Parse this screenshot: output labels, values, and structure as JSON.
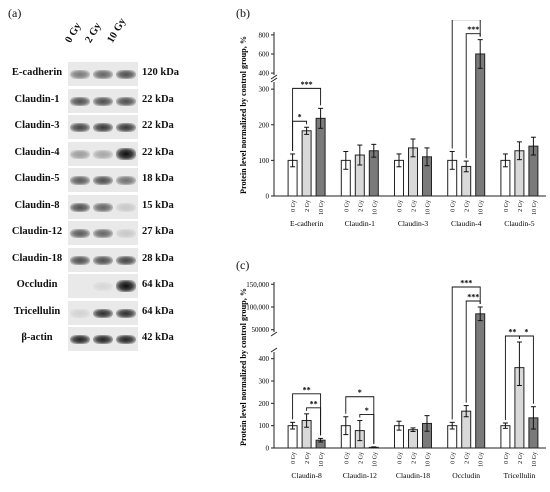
{
  "panel_a": {
    "label": "(a)",
    "columns": [
      "0 Gy",
      "2 Gy",
      "10 Gy"
    ],
    "rows": [
      {
        "protein": "E-cadherin",
        "kda": "120 kDa",
        "bands": [
          0.5,
          0.6,
          0.7
        ]
      },
      {
        "protein": "Claudin-1",
        "kda": "22 kDa",
        "bands": [
          0.7,
          0.7,
          0.7
        ]
      },
      {
        "protein": "Claudin-3",
        "kda": "22 kDa",
        "bands": [
          0.75,
          0.8,
          0.8
        ]
      },
      {
        "protein": "Claudin-4",
        "kda": "22 kDa",
        "bands": [
          0.35,
          0.3,
          1.0
        ]
      },
      {
        "protein": "Claudin-5",
        "kda": "18 kDa",
        "bands": [
          0.65,
          0.7,
          0.55
        ]
      },
      {
        "protein": "Claudin-8",
        "kda": "15 kDa",
        "bands": [
          0.7,
          0.6,
          0.15
        ]
      },
      {
        "protein": "Claudin-12",
        "kda": "27 kDa",
        "bands": [
          0.65,
          0.6,
          0.15
        ]
      },
      {
        "protein": "Claudin-18",
        "kda": "28 kDa",
        "bands": [
          0.7,
          0.7,
          0.75
        ]
      },
      {
        "protein": "Occludin",
        "kda": "64 kDa",
        "bands": [
          0.0,
          0.08,
          1.0
        ]
      },
      {
        "protein": "Tricellulin",
        "kda": "64 kDa",
        "bands": [
          0.1,
          0.85,
          0.85
        ]
      },
      {
        "protein": "β-actin",
        "kda": "42 kDa",
        "bands": [
          0.9,
          0.9,
          0.9
        ]
      }
    ]
  },
  "colors": {
    "g0": "#ffffff",
    "g2": "#d9d9d9",
    "g10": "#7a7a7a"
  },
  "chart_data": [
    {
      "panel": "(b)",
      "type": "bar",
      "ylabel": "Protein level normalized by control group, %",
      "dose_labels": [
        "0 Gy",
        "2 Gy",
        "10 Gy"
      ],
      "broken_axis": true,
      "lower_ticks": [
        0,
        100,
        200,
        300
      ],
      "upper_ticks": [
        400,
        600,
        800
      ],
      "groups": [
        {
          "name": "E-cadherin",
          "values": [
            100,
            183,
            218
          ],
          "errors": [
            18,
            10,
            28
          ]
        },
        {
          "name": "Claudin-1",
          "values": [
            100,
            115,
            127
          ],
          "errors": [
            25,
            28,
            18
          ]
        },
        {
          "name": "Claudin-3",
          "values": [
            100,
            135,
            110
          ],
          "errors": [
            18,
            25,
            25
          ]
        },
        {
          "name": "Claudin-4",
          "values": [
            100,
            83,
            600
          ],
          "errors": [
            25,
            15,
            150
          ]
        },
        {
          "name": "Claudin-5",
          "values": [
            100,
            127,
            140
          ],
          "errors": [
            18,
            25,
            25
          ]
        }
      ],
      "significance": [
        {
          "group": 0,
          "from": 0,
          "to": 1,
          "label": "*"
        },
        {
          "group": 0,
          "from": 0,
          "to": 2,
          "label": "***"
        },
        {
          "group": 3,
          "from": 0,
          "to": 2,
          "label": "***"
        },
        {
          "group": 3,
          "from": 1,
          "to": 2,
          "label": "***"
        }
      ]
    },
    {
      "panel": "(c)",
      "type": "bar",
      "ylabel": "Protein level normalized by control group, %",
      "dose_labels": [
        "0 Gy",
        "2 Gy",
        "10 Gy"
      ],
      "broken_axis": true,
      "lower_ticks": [
        0,
        100,
        200,
        300,
        400
      ],
      "upper_ticks": [
        50000,
        100000,
        150000
      ],
      "upper_tick_labels": [
        "50000",
        "100,000",
        "150,000"
      ],
      "groups": [
        {
          "name": "Claudin-8",
          "values": [
            100,
            123,
            35
          ],
          "errors": [
            15,
            30,
            8
          ]
        },
        {
          "name": "Claudin-12",
          "values": [
            100,
            78,
            3
          ],
          "errors": [
            40,
            45,
            2
          ]
        },
        {
          "name": "Claudin-18",
          "values": [
            100,
            82,
            110
          ],
          "errors": [
            20,
            8,
            35
          ]
        },
        {
          "name": "Occludin",
          "values": [
            100,
            165,
            85000
          ],
          "errors": [
            15,
            25,
            15000
          ]
        },
        {
          "name": "Tricellulin",
          "values": [
            100,
            360,
            135
          ],
          "errors": [
            12,
            80,
            50
          ]
        }
      ],
      "significance": [
        {
          "group": 0,
          "from": 0,
          "to": 2,
          "label": "**"
        },
        {
          "group": 0,
          "from": 1,
          "to": 2,
          "label": "**"
        },
        {
          "group": 1,
          "from": 0,
          "to": 2,
          "label": "*"
        },
        {
          "group": 1,
          "from": 1,
          "to": 2,
          "label": "*"
        },
        {
          "group": 3,
          "from": 0,
          "to": 2,
          "label": "***"
        },
        {
          "group": 3,
          "from": 1,
          "to": 2,
          "label": "***"
        },
        {
          "group": 4,
          "from": 0,
          "to": 1,
          "label": "**"
        },
        {
          "group": 4,
          "from": 1,
          "to": 2,
          "label": "*"
        }
      ]
    }
  ]
}
